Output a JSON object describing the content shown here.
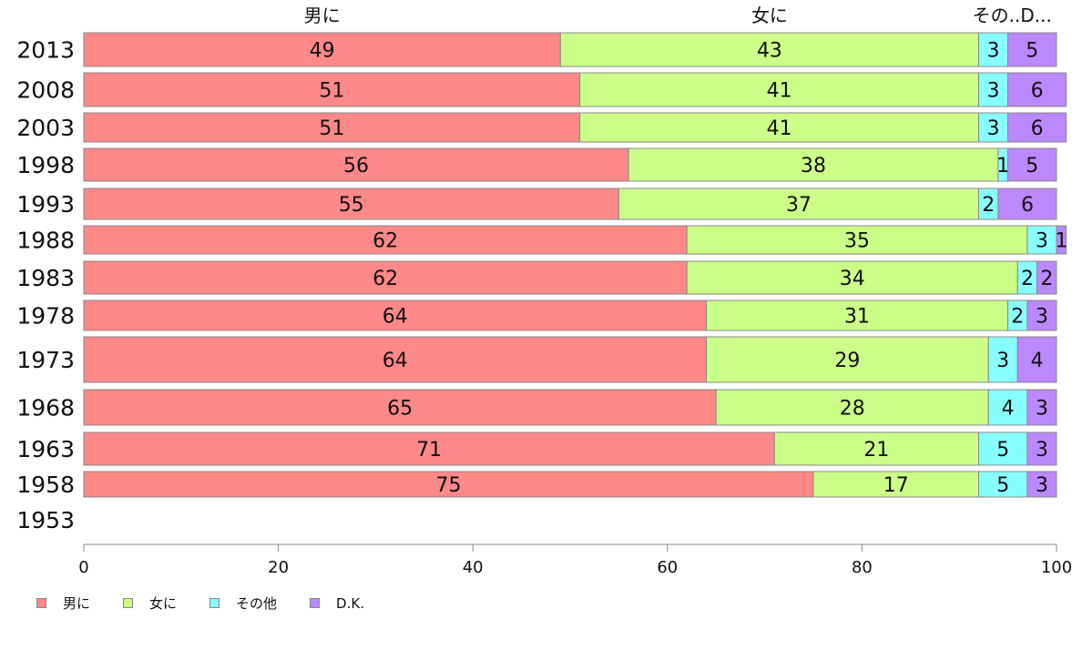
{
  "chart_data": {
    "type": "bar",
    "orientation": "horizontal",
    "stacked": true,
    "categories": [
      "2013",
      "2008",
      "2003",
      "1998",
      "1993",
      "1988",
      "1983",
      "1978",
      "1973",
      "1968",
      "1963",
      "1958",
      "1953"
    ],
    "series": [
      {
        "name": "男に",
        "color": "#ff8888",
        "values": [
          49,
          51,
          51,
          56,
          55,
          62,
          62,
          64,
          64,
          65,
          71,
          75,
          null
        ]
      },
      {
        "name": "女に",
        "color": "#ccff88",
        "values": [
          43,
          41,
          41,
          38,
          37,
          35,
          34,
          31,
          29,
          28,
          21,
          17,
          null
        ]
      },
      {
        "name": "その他",
        "color": "#88ffff",
        "values": [
          3,
          3,
          3,
          1,
          2,
          3,
          2,
          2,
          3,
          4,
          5,
          5,
          null
        ]
      },
      {
        "name": "D.K.",
        "color": "#bb88ff",
        "values": [
          5,
          6,
          6,
          5,
          6,
          1,
          2,
          3,
          4,
          3,
          3,
          3,
          null
        ]
      }
    ],
    "top_labels": [
      "男に",
      "女に",
      "その..D..."
    ],
    "xlim": [
      0,
      100
    ],
    "xticks": [
      0,
      20,
      40,
      60,
      80,
      100
    ],
    "grid": false,
    "legend_position": "bottom-left"
  }
}
